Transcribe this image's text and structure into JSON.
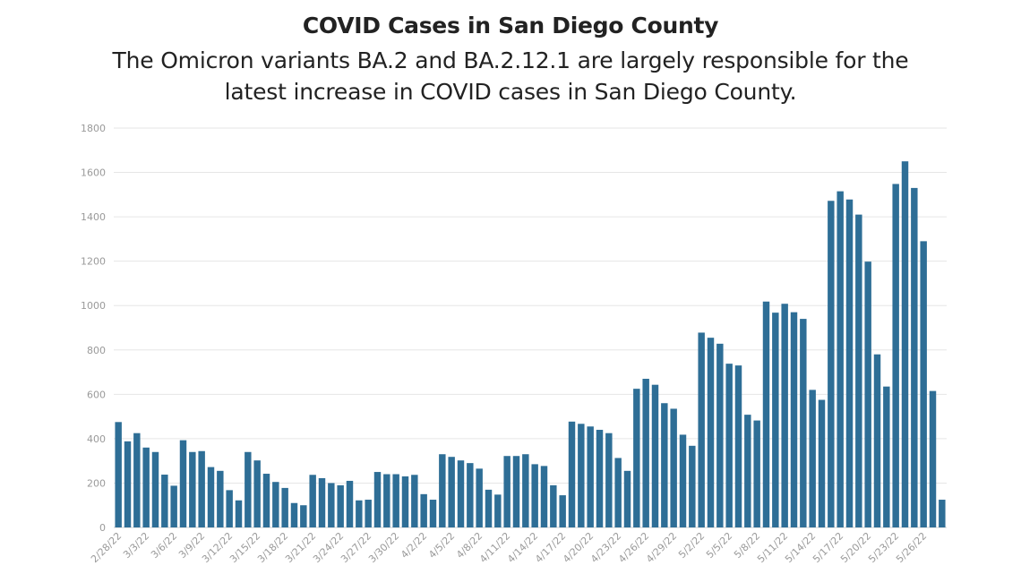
{
  "header": {
    "title": "COVID Cases in San Diego County",
    "subtitle_line1": "The Omicron variants BA.2 and BA.2.12.1 are largely responsible for the",
    "subtitle_line2": "latest increase in COVID cases in San Diego County."
  },
  "chart_data": {
    "type": "bar",
    "title": "COVID Cases in San Diego County",
    "subtitle": "The Omicron variants BA.2 and BA.2.12.1 are largely responsible for the latest increase in COVID cases in San Diego County.",
    "xlabel": "",
    "ylabel": "",
    "ylim": [
      0,
      1800
    ],
    "yticks": [
      0,
      200,
      400,
      600,
      800,
      1000,
      1200,
      1400,
      1600,
      1800
    ],
    "grid": true,
    "bar_color": "#2e6e96",
    "categories": [
      "2/28/22",
      "3/1/22",
      "3/2/22",
      "3/3/22",
      "3/4/22",
      "3/5/22",
      "3/6/22",
      "3/7/22",
      "3/8/22",
      "3/9/22",
      "3/10/22",
      "3/11/22",
      "3/12/22",
      "3/13/22",
      "3/14/22",
      "3/15/22",
      "3/16/22",
      "3/17/22",
      "3/18/22",
      "3/19/22",
      "3/20/22",
      "3/21/22",
      "3/22/22",
      "3/23/22",
      "3/24/22",
      "3/25/22",
      "3/26/22",
      "3/27/22",
      "3/28/22",
      "3/29/22",
      "3/30/22",
      "3/31/22",
      "4/1/22",
      "4/2/22",
      "4/3/22",
      "4/4/22",
      "4/5/22",
      "4/6/22",
      "4/7/22",
      "4/8/22",
      "4/9/22",
      "4/10/22",
      "4/11/22",
      "4/12/22",
      "4/13/22",
      "4/14/22",
      "4/15/22",
      "4/16/22",
      "4/17/22",
      "4/18/22",
      "4/19/22",
      "4/20/22",
      "4/21/22",
      "4/22/22",
      "4/23/22",
      "4/24/22",
      "4/25/22",
      "4/26/22",
      "4/27/22",
      "4/28/22",
      "4/29/22",
      "4/30/22",
      "5/1/22",
      "5/2/22",
      "5/3/22",
      "5/4/22",
      "5/5/22",
      "5/6/22",
      "5/7/22",
      "5/8/22",
      "5/9/22",
      "5/10/22",
      "5/11/22",
      "5/12/22",
      "5/13/22",
      "5/14/22",
      "5/15/22",
      "5/16/22",
      "5/17/22",
      "5/18/22",
      "5/19/22",
      "5/20/22",
      "5/21/22",
      "5/22/22",
      "5/23/22",
      "5/24/22",
      "5/25/22",
      "5/26/22",
      "5/27/22",
      "5/28/22"
    ],
    "visible_tick_labels": [
      "2/28/22",
      "3/3/22",
      "3/6/22",
      "3/9/22",
      "3/12/22",
      "3/15/22",
      "3/18/22",
      "3/21/22",
      "3/24/22",
      "3/27/22",
      "3/30/22",
      "4/2/22",
      "4/5/22",
      "4/8/22",
      "4/11/22",
      "4/14/22",
      "4/17/22",
      "4/20/22",
      "4/23/22",
      "4/26/22",
      "4/29/22",
      "5/2/22",
      "5/5/22",
      "5/8/22",
      "5/11/22",
      "5/14/22",
      "5/17/22",
      "5/20/22",
      "5/23/22",
      "5/26/22"
    ],
    "values": [
      475,
      388,
      425,
      360,
      340,
      238,
      188,
      393,
      340,
      344,
      272,
      255,
      168,
      122,
      340,
      302,
      242,
      205,
      178,
      110,
      100,
      237,
      222,
      200,
      190,
      210,
      122,
      125,
      250,
      240,
      240,
      230,
      237,
      150,
      125,
      330,
      318,
      302,
      290,
      265,
      170,
      148,
      322,
      322,
      330,
      285,
      277,
      190,
      145,
      477,
      467,
      455,
      440,
      425,
      313,
      255,
      625,
      670,
      643,
      560,
      535,
      418,
      368,
      878,
      855,
      828,
      738,
      730,
      508,
      482,
      1018,
      968,
      1008,
      970,
      940,
      620,
      575,
      1472,
      1515,
      1478,
      1410,
      1198,
      780,
      635,
      1548,
      1650,
      1530,
      1290,
      615,
      125
    ]
  }
}
